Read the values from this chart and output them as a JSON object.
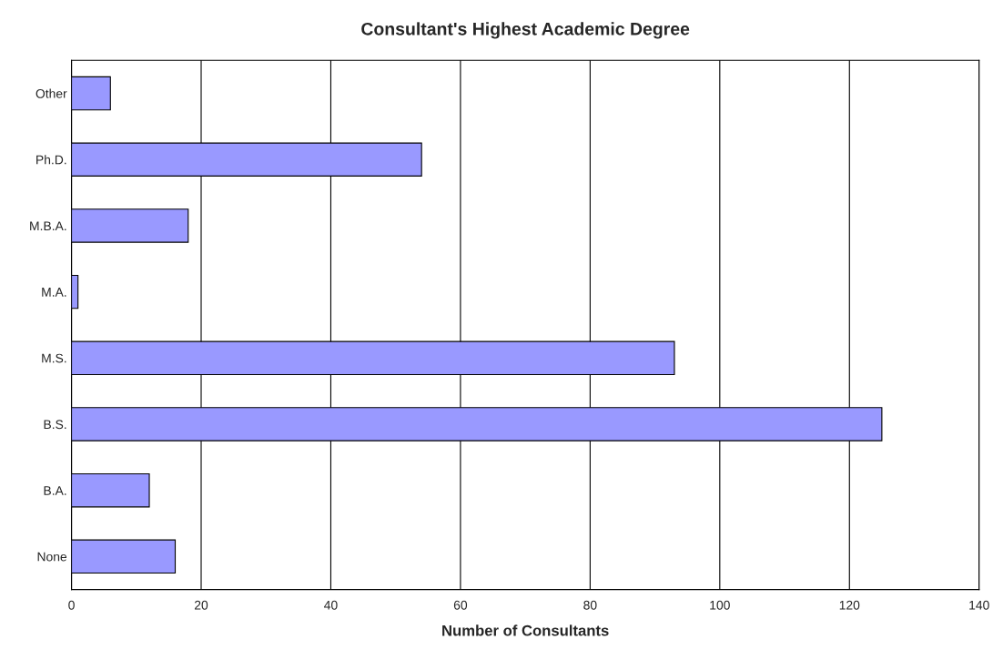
{
  "chart_data": {
    "type": "bar",
    "orientation": "horizontal",
    "title": "Consultant's Highest Academic Degree",
    "xlabel": "Number of Consultants",
    "categories": [
      "Other",
      "Ph.D.",
      "M.B.A.",
      "M.A.",
      "M.S.",
      "B.S.",
      "B.A.",
      "None"
    ],
    "values": [
      6,
      54,
      18,
      1,
      93,
      125,
      12,
      16
    ],
    "color": "#9999ff",
    "xlim": [
      0,
      140
    ],
    "xticks": [
      0,
      20,
      40,
      60,
      80,
      100,
      120,
      140
    ],
    "grid": "x"
  }
}
